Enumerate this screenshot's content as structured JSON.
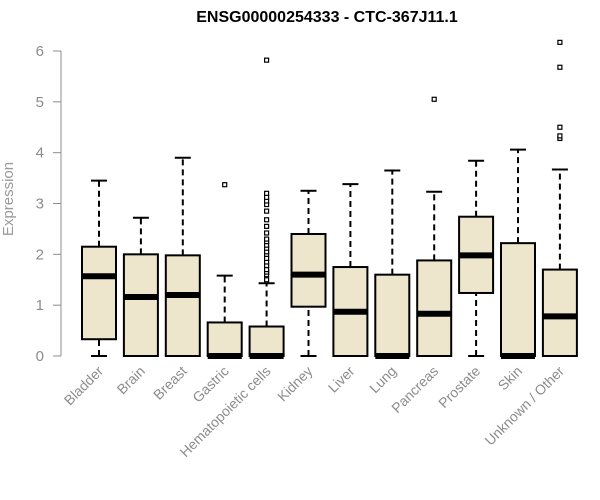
{
  "chart_data": {
    "type": "box",
    "title": "ENSG00000254333 - CTC-367J11.1",
    "xlabel": "",
    "ylabel": "Expression",
    "ylim": [
      0,
      6
    ],
    "yticks": [
      0,
      1,
      2,
      3,
      4,
      5,
      6
    ],
    "colors": {
      "box_fill": "#ede6cc",
      "box_stroke": "#000000",
      "axis": "#8c8c8c"
    },
    "categories": [
      "Bladder",
      "Brain",
      "Breast",
      "Gastric",
      "Hematopoietic cells",
      "Kidney",
      "Liver",
      "Lung",
      "Pancreas",
      "Prostate",
      "Skin",
      "Unknown / Other"
    ],
    "boxes": [
      {
        "category": "Bladder",
        "min": 0,
        "q1": 0.33,
        "median": 1.57,
        "q3": 2.15,
        "max": 3.45,
        "outliers": []
      },
      {
        "category": "Brain",
        "min": 0,
        "q1": 0,
        "median": 1.16,
        "q3": 2.0,
        "max": 2.72,
        "outliers": []
      },
      {
        "category": "Breast",
        "min": 0,
        "q1": 0,
        "median": 1.2,
        "q3": 1.98,
        "max": 3.9,
        "outliers": []
      },
      {
        "category": "Gastric",
        "min": 0,
        "q1": 0,
        "median": 0,
        "q3": 0.66,
        "max": 1.58,
        "outliers": [
          3.37
        ]
      },
      {
        "category": "Hematopoietic cells",
        "min": 0,
        "q1": 0,
        "median": 0,
        "q3": 0.58,
        "max": 1.43,
        "outliers": [
          1.5,
          1.6,
          1.65,
          1.7,
          1.78,
          1.85,
          1.92,
          2.0,
          2.05,
          2.12,
          2.18,
          2.25,
          2.3,
          2.42,
          2.55,
          2.68,
          2.85,
          2.98,
          3.05,
          3.12,
          3.2,
          5.82
        ]
      },
      {
        "category": "Kidney",
        "min": 0,
        "q1": 0.97,
        "median": 1.6,
        "q3": 2.4,
        "max": 3.25,
        "outliers": []
      },
      {
        "category": "Liver",
        "min": 0,
        "q1": 0,
        "median": 0.87,
        "q3": 1.75,
        "max": 3.38,
        "outliers": []
      },
      {
        "category": "Lung",
        "min": 0,
        "q1": 0,
        "median": 0,
        "q3": 1.6,
        "max": 3.65,
        "outliers": []
      },
      {
        "category": "Pancreas",
        "min": 0,
        "q1": 0,
        "median": 0.83,
        "q3": 1.88,
        "max": 3.23,
        "outliers": [
          5.05
        ]
      },
      {
        "category": "Prostate",
        "min": 0,
        "q1": 1.24,
        "median": 1.98,
        "q3": 2.74,
        "max": 3.84,
        "outliers": []
      },
      {
        "category": "Skin",
        "min": 0,
        "q1": 0,
        "median": 0,
        "q3": 2.22,
        "max": 4.06,
        "outliers": []
      },
      {
        "category": "Unknown / Other",
        "min": 0,
        "q1": 0,
        "median": 0.78,
        "q3": 1.7,
        "max": 3.67,
        "outliers": [
          4.28,
          4.33,
          4.5,
          5.68,
          6.17
        ]
      }
    ]
  }
}
